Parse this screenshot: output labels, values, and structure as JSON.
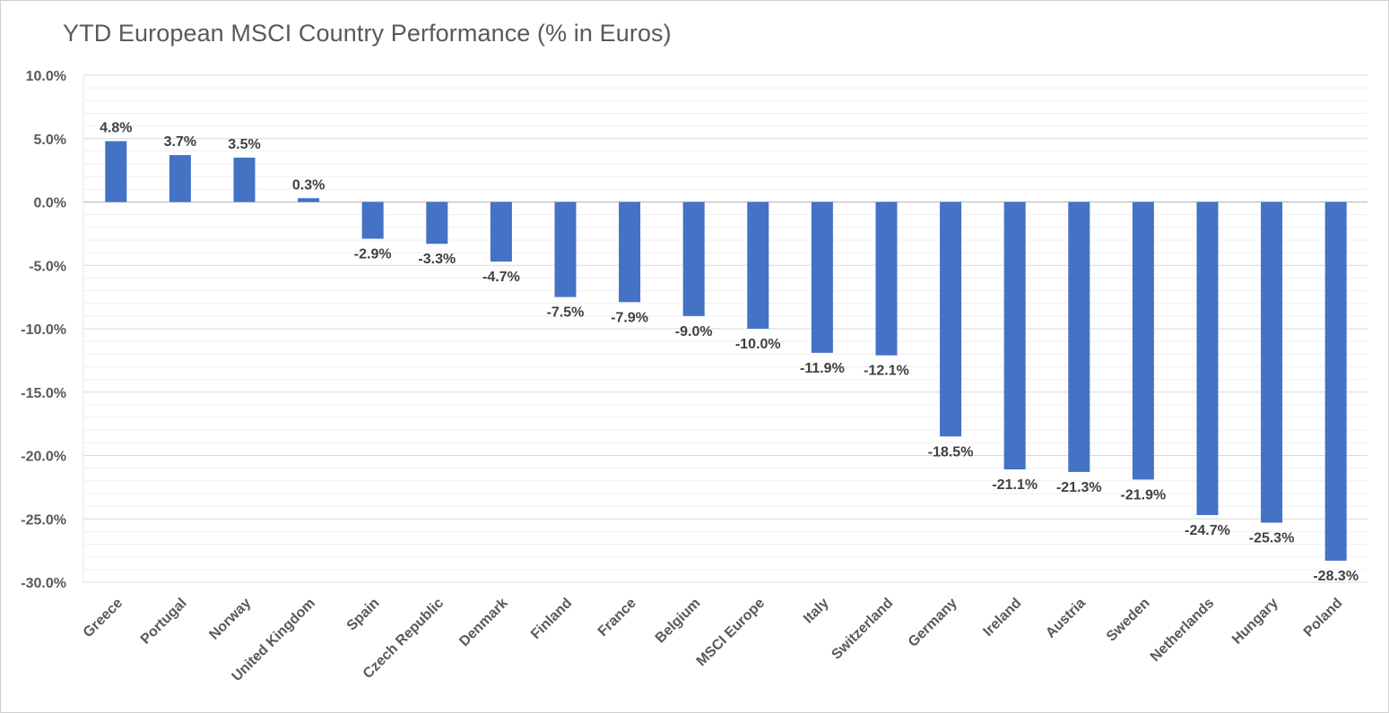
{
  "chart_data": {
    "type": "bar",
    "title": "YTD European MSCI Country Performance (% in Euros)",
    "xlabel": "",
    "ylabel": "",
    "ylim": [
      -30,
      10
    ],
    "ytick_step": 5,
    "grid": true,
    "legend": "none",
    "bar_color": "#4472C4",
    "categories": [
      "Greece",
      "Portugal",
      "Norway",
      "United Kingdom",
      "Spain",
      "Czech Republic",
      "Denmark",
      "Finland",
      "France",
      "Belgium",
      "MSCI Europe",
      "Italy",
      "Switzerland",
      "Germany",
      "Ireland",
      "Austria",
      "Sweden",
      "Netherlands",
      "Hungary",
      "Poland"
    ],
    "values": [
      4.8,
      3.7,
      3.5,
      0.3,
      -2.9,
      -3.3,
      -4.7,
      -7.5,
      -7.9,
      -9.0,
      -10.0,
      -11.9,
      -12.1,
      -18.5,
      -21.1,
      -21.3,
      -21.9,
      -24.7,
      -25.3,
      -28.3
    ],
    "data_labels": [
      "4.8%",
      "3.7%",
      "3.5%",
      "0.3%",
      "-2.9%",
      "-3.3%",
      "-4.7%",
      "-7.5%",
      "-7.9%",
      "-9.0%",
      "-10.0%",
      "-11.9%",
      "-12.1%",
      "-18.5%",
      "-21.1%",
      "-21.3%",
      "-21.9%",
      "-24.7%",
      "-25.3%",
      "-28.3%"
    ],
    "ytick_labels": [
      "10.0%",
      "5.0%",
      "0.0%",
      "-5.0%",
      "-10.0%",
      "-15.0%",
      "-20.0%",
      "-25.0%",
      "-30.0%"
    ]
  }
}
